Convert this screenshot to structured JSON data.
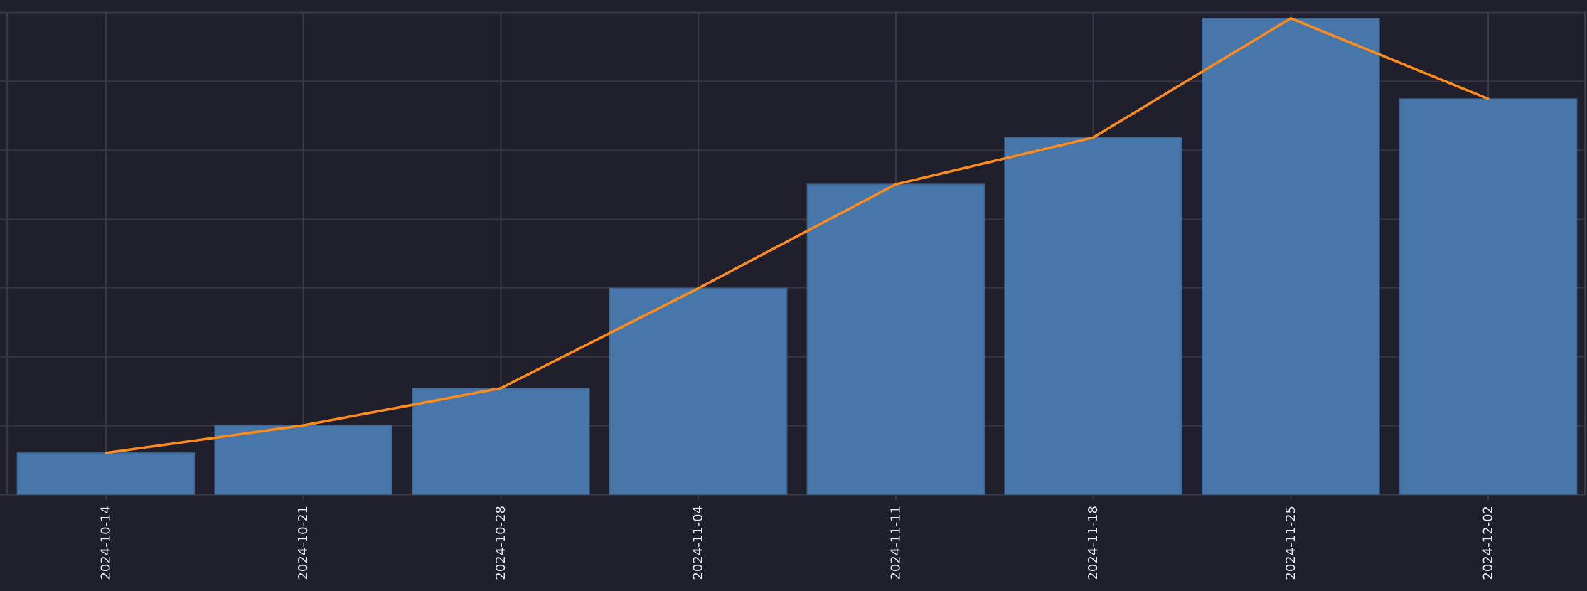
{
  "chart_data": {
    "type": "bar+line",
    "title": "",
    "xlabel": "",
    "ylabel": "",
    "categories": [
      "2024-10-14",
      "2024-10-21",
      "2024-10-28",
      "2024-11-04",
      "2024-11-11",
      "2024-11-18",
      "2024-11-25",
      "2024-12-02"
    ],
    "series": [
      {
        "type": "bar",
        "values": [
          0.6,
          1.0,
          1.54,
          2.99,
          4.5,
          5.18,
          6.91,
          5.74
        ]
      },
      {
        "type": "line",
        "values": [
          0.6,
          1.0,
          1.54,
          2.99,
          4.5,
          5.18,
          6.91,
          5.74
        ]
      }
    ],
    "ylim": [
      0,
      7
    ],
    "y_gridlines": 7,
    "y_tick_labels_shown": false,
    "grid": true,
    "legend": "none",
    "colors": {
      "background": "#201f2c",
      "grid": "#393849",
      "bar": "#4776aa",
      "bar_edge": "#3d6593",
      "line": "#ff8c1a",
      "tick_text": "#e6e6ee"
    }
  }
}
